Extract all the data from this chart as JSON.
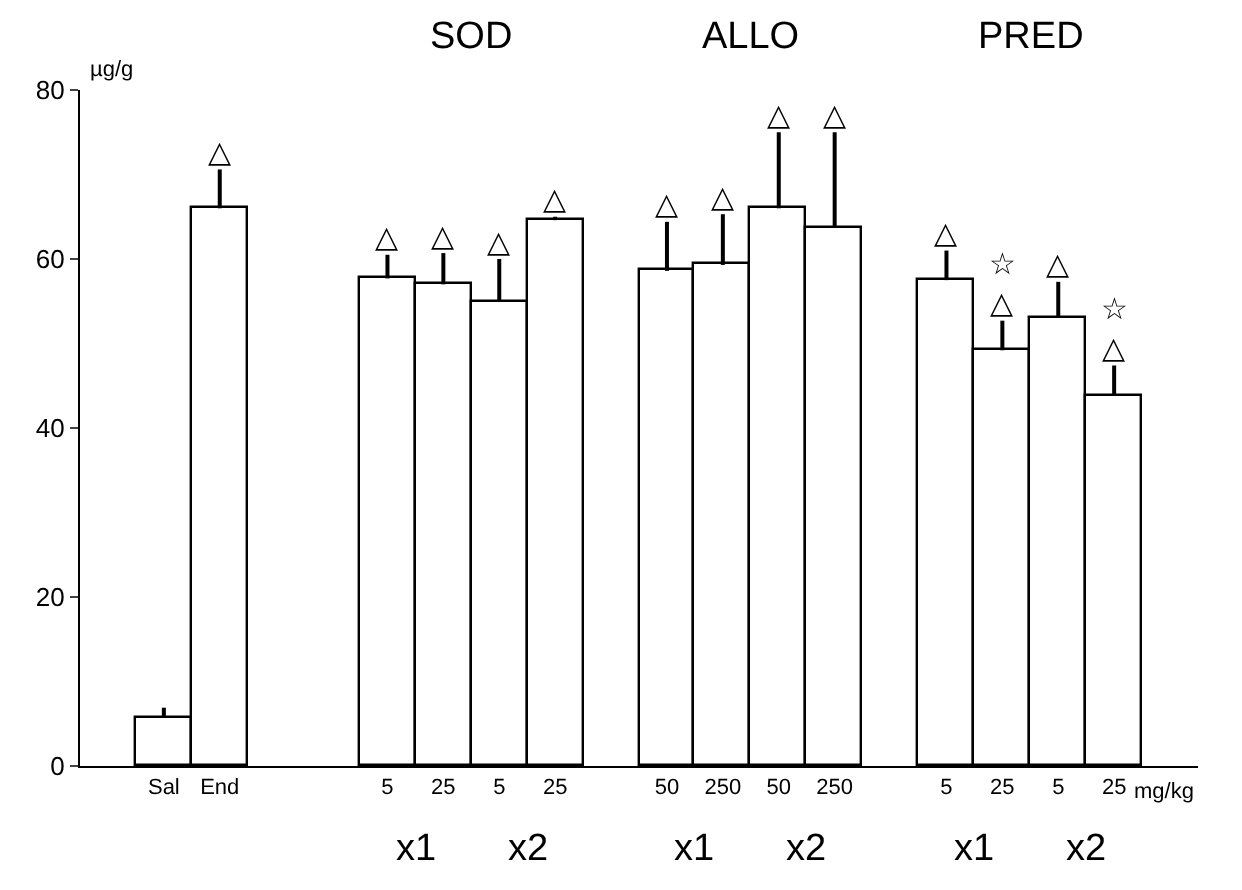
{
  "chart_data": {
    "type": "bar",
    "categories": [
      null,
      "Sal",
      "End",
      null,
      null,
      "5",
      "25",
      "5",
      "25",
      null,
      "50",
      "250",
      "50",
      "250",
      null,
      "5",
      "25",
      "5",
      "25"
    ],
    "values": [
      null,
      5.7,
      66,
      null,
      null,
      57.7,
      57,
      55,
      64.6,
      null,
      58.6,
      59.3,
      66,
      63.7,
      null,
      57.5,
      49.2,
      53.1,
      43.9
    ],
    "errors": [
      null,
      [
        5.7,
        6.9
      ],
      [
        66,
        70.6
      ],
      null,
      null,
      [
        57.7,
        60.5
      ],
      [
        57,
        60.7
      ],
      [
        55,
        60
      ],
      [
        64.6,
        65
      ],
      null,
      [
        58.6,
        64.4
      ],
      [
        59.3,
        65.3
      ],
      [
        66,
        75
      ],
      [
        63.7,
        75
      ],
      null,
      [
        57.5,
        61
      ],
      [
        49.2,
        52.7
      ],
      [
        53.1,
        57.3
      ],
      [
        43.9,
        47.4
      ]
    ],
    "value_labels": [
      null,
      null,
      "△",
      null,
      null,
      "△",
      "△",
      "△",
      "△",
      null,
      "△",
      "△",
      "△",
      "△",
      null,
      "△",
      "☆\n△",
      "△",
      "☆\n△"
    ],
    "color": "#ffffff",
    "ylabel": "µg/g",
    "ylim": [
      0,
      80
    ],
    "yticks": [
      0,
      20,
      40,
      60,
      80
    ],
    "annotations": [
      "SOD",
      "ALLO",
      "PRED",
      "x1",
      "x2",
      "x1",
      "x2",
      "x1",
      "x2",
      "mg/kg"
    ]
  }
}
